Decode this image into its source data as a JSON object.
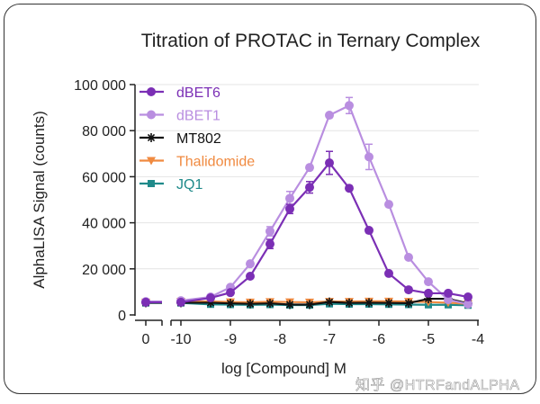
{
  "chart_data": {
    "type": "line",
    "title": "Titration of PROTAC in Ternary Complex",
    "xlabel": "log [Compound] M",
    "ylabel": "AlphaLISA Signal (counts)",
    "ylim": [
      0,
      100000
    ],
    "xlim": [
      -10,
      -4
    ],
    "break_x_value": 0,
    "x_ticks": [
      "-10",
      "-9",
      "-8",
      "-7",
      "-6",
      "-5",
      "-4"
    ],
    "x_break_tick": "0",
    "y_ticks": [
      "0",
      "20 000",
      "40 000",
      "60 000",
      "80 000",
      "100 000"
    ],
    "y_tick_values": [
      0,
      20000,
      40000,
      60000,
      80000,
      100000
    ],
    "grid": "horizontal",
    "legend_position": "top-left",
    "x": [
      -10,
      -9.4,
      -9,
      -8.6,
      -8.2,
      -7.8,
      -7.4,
      -7.0,
      -6.6,
      -6.2,
      -5.8,
      -5.4,
      -5.0,
      -4.6,
      -4.2
    ],
    "series": [
      {
        "name": "dBET6",
        "color": "#7b2fb5",
        "marker": "circle",
        "zero_value": 5500,
        "values": [
          5500,
          7400,
          9700,
          16800,
          30800,
          46000,
          55400,
          66000,
          55000,
          36700,
          18000,
          10900,
          9400,
          9400,
          7800
        ],
        "errors": [
          0,
          0,
          0,
          0,
          2000,
          2000,
          2500,
          5000,
          0,
          0,
          0,
          0,
          0,
          0,
          0
        ]
      },
      {
        "name": "dBET1",
        "color": "#b98ee0",
        "marker": "circle",
        "zero_value": 5800,
        "values": [
          6200,
          7800,
          12000,
          22200,
          36300,
          50600,
          64000,
          86700,
          90900,
          68600,
          48000,
          25000,
          14400,
          6600,
          4700
        ],
        "errors": [
          0,
          0,
          0,
          0,
          2000,
          3000,
          0,
          0,
          3500,
          5500,
          0,
          0,
          0,
          0,
          0
        ]
      },
      {
        "name": "MT802",
        "color": "#111111",
        "marker": "star",
        "zero_value": 5300,
        "values": [
          5300,
          5300,
          5000,
          4800,
          5000,
          4500,
          4500,
          5600,
          5200,
          5300,
          5200,
          5100,
          7000,
          7000,
          5000
        ],
        "errors": [
          0,
          0,
          0,
          0,
          0,
          0,
          0,
          0,
          0,
          0,
          0,
          0,
          0,
          0,
          0
        ]
      },
      {
        "name": "Thalidomide",
        "color": "#f08a40",
        "marker": "triangle-down",
        "zero_value": 5500,
        "values": [
          5800,
          5800,
          5600,
          5500,
          5700,
          5600,
          5500,
          5800,
          5800,
          5900,
          5900,
          5800,
          5600,
          5300,
          4800
        ],
        "errors": [
          0,
          0,
          0,
          0,
          0,
          0,
          0,
          0,
          0,
          0,
          0,
          0,
          0,
          0,
          0
        ]
      },
      {
        "name": "JQ1",
        "color": "#1f8a8a",
        "marker": "square",
        "zero_value": 5200,
        "values": [
          5200,
          4600,
          4500,
          4400,
          4500,
          4300,
          4300,
          4800,
          4700,
          4700,
          4600,
          4500,
          4400,
          4400,
          4200
        ],
        "errors": [
          0,
          0,
          0,
          0,
          0,
          0,
          0,
          0,
          0,
          0,
          0,
          0,
          0,
          0,
          0
        ]
      }
    ]
  },
  "watermark": "知乎 @HTRFandALPHA"
}
